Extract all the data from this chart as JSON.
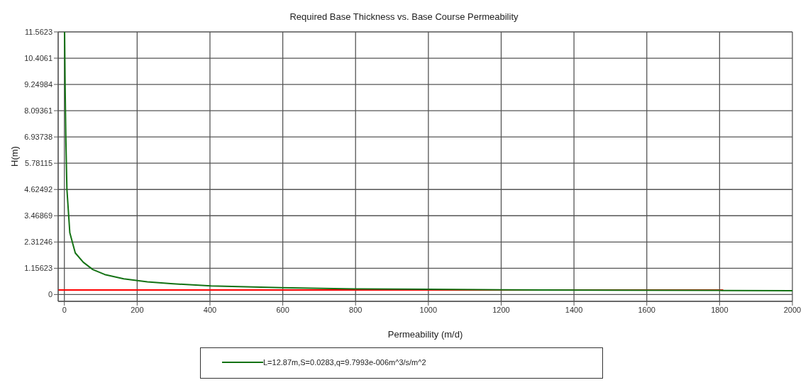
{
  "chart_data": {
    "type": "line",
    "title": "Required Base Thickness vs. Base Course Permeability",
    "xlabel": "Permeability (m/d)",
    "ylabel": "H(m)",
    "series": [
      {
        "name": "L=12.87m,S=0.0283,q=9.7993e-006m^3/s/m^2",
        "color": "#147214",
        "x": [
          0.6,
          2,
          4,
          7,
          15,
          30,
          52,
          78,
          111,
          163,
          228,
          292,
          403,
          597,
          798,
          1000,
          1200,
          1500,
          1800,
          2000
        ],
        "values": [
          11.56,
          9.25,
          6.94,
          4.64,
          2.72,
          1.83,
          1.42,
          1.1,
          0.88,
          0.69,
          0.56,
          0.48,
          0.38,
          0.3,
          0.25,
          0.23,
          0.21,
          0.19,
          0.18,
          0.17
        ]
      },
      {
        "color": "#ff0000",
        "x": [
          -17,
          1810
        ],
        "values": [
          0.2,
          0.2
        ]
      }
    ],
    "xlim": [
      -17,
      2000
    ],
    "xticks": [
      0,
      200,
      400,
      600,
      800,
      1000,
      1200,
      1400,
      1600,
      1800,
      2000
    ],
    "ylim": [
      -0.3,
      11.5623
    ],
    "yticks": [
      0,
      1.15623,
      2.31246,
      3.46869,
      4.62492,
      5.78115,
      6.93738,
      8.09361,
      9.24984,
      10.4061,
      11.5623
    ],
    "grid": true,
    "legend": "bottom"
  }
}
